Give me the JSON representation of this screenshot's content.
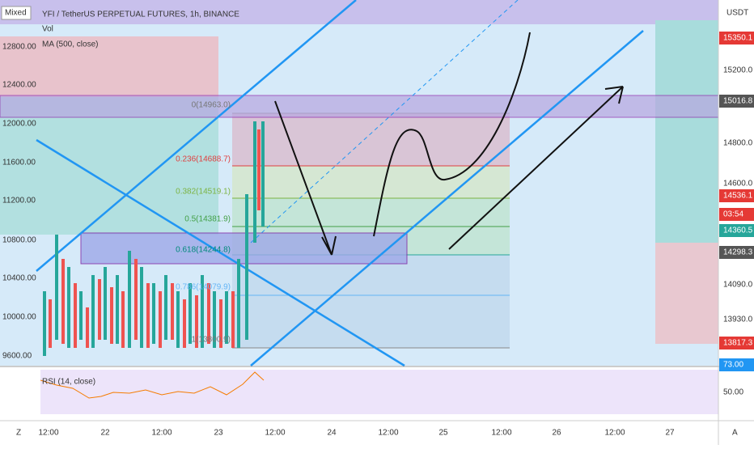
{
  "header": {
    "symbol": "YFI / TetherUS PERPETUAL FUTURES, 1h, BINANCE",
    "volume": "Vol",
    "moving_average": "MA (500, close)",
    "scale_mode": "Mixed",
    "currency": "USDT"
  },
  "left_axis": [
    "12800.00",
    "12400.00",
    "12000.00",
    "11600.00",
    "11200.00",
    "10800.00",
    "10400.00",
    "10000.00",
    "9600.00"
  ],
  "right_axis": [
    "15350.1",
    "15200.0",
    "15016.8",
    "14800.0",
    "14600.0",
    "14536.1",
    "03:54",
    "14360.5",
    "14298.3",
    "14090.0",
    "13930.0",
    "13817.3"
  ],
  "time_axis": [
    "12:00",
    "22",
    "12:00",
    "23",
    "12:00",
    "24",
    "12:00",
    "25",
    "12:00",
    "26",
    "12:00",
    "27"
  ],
  "fib_levels": [
    "0(14963.0)",
    "0.236(14688.7)",
    "0.382(14519.1)",
    "0.5(14381.9)",
    "0.618(14244.8)",
    "0.786(14079.9)",
    "1(13800.9)"
  ],
  "rsi": {
    "label": "RSI (14, close)",
    "axis": [
      "73.00",
      "50.00"
    ]
  },
  "footer": {
    "left": "Z",
    "right": "A"
  }
}
